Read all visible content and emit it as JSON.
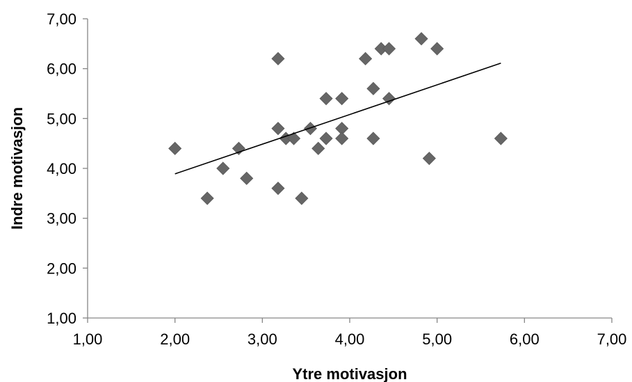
{
  "chart_data": {
    "type": "scatter",
    "title": "",
    "xlabel": "Ytre motivasjon",
    "ylabel": "Indre motivasjon",
    "xlim": [
      1,
      7
    ],
    "ylim": [
      1,
      7
    ],
    "x_ticks": [
      1,
      2,
      3,
      4,
      5,
      6,
      7
    ],
    "y_ticks": [
      1,
      2,
      3,
      4,
      5,
      6,
      7
    ],
    "x_tick_labels": [
      "1,00",
      "2,00",
      "3,00",
      "4,00",
      "5,00",
      "6,00",
      "7,00"
    ],
    "y_tick_labels": [
      "1,00",
      "2,00",
      "3,00",
      "4,00",
      "5,00",
      "6,00",
      "7,00"
    ],
    "grid": false,
    "legend": "none",
    "marker": "diamond",
    "marker_color": "#666666",
    "trendline": {
      "x": [
        2.0,
        5.73
      ],
      "y": [
        3.89,
        6.11
      ],
      "color": "#000000"
    },
    "points": [
      [
        2.0,
        4.4
      ],
      [
        2.37,
        3.4
      ],
      [
        2.55,
        4.0
      ],
      [
        2.73,
        4.4
      ],
      [
        2.82,
        3.8
      ],
      [
        3.18,
        6.2
      ],
      [
        3.18,
        4.8
      ],
      [
        3.18,
        3.6
      ],
      [
        3.27,
        4.6
      ],
      [
        3.36,
        4.6
      ],
      [
        3.45,
        3.4
      ],
      [
        3.55,
        4.8
      ],
      [
        3.64,
        4.4
      ],
      [
        3.73,
        5.4
      ],
      [
        3.73,
        4.6
      ],
      [
        3.91,
        5.4
      ],
      [
        3.91,
        4.8
      ],
      [
        3.91,
        4.6
      ],
      [
        4.18,
        6.2
      ],
      [
        4.27,
        5.6
      ],
      [
        4.27,
        4.6
      ],
      [
        4.36,
        6.4
      ],
      [
        4.45,
        6.4
      ],
      [
        4.45,
        5.4
      ],
      [
        4.82,
        6.6
      ],
      [
        4.91,
        4.2
      ],
      [
        5.0,
        6.4
      ],
      [
        5.73,
        4.6
      ]
    ]
  }
}
